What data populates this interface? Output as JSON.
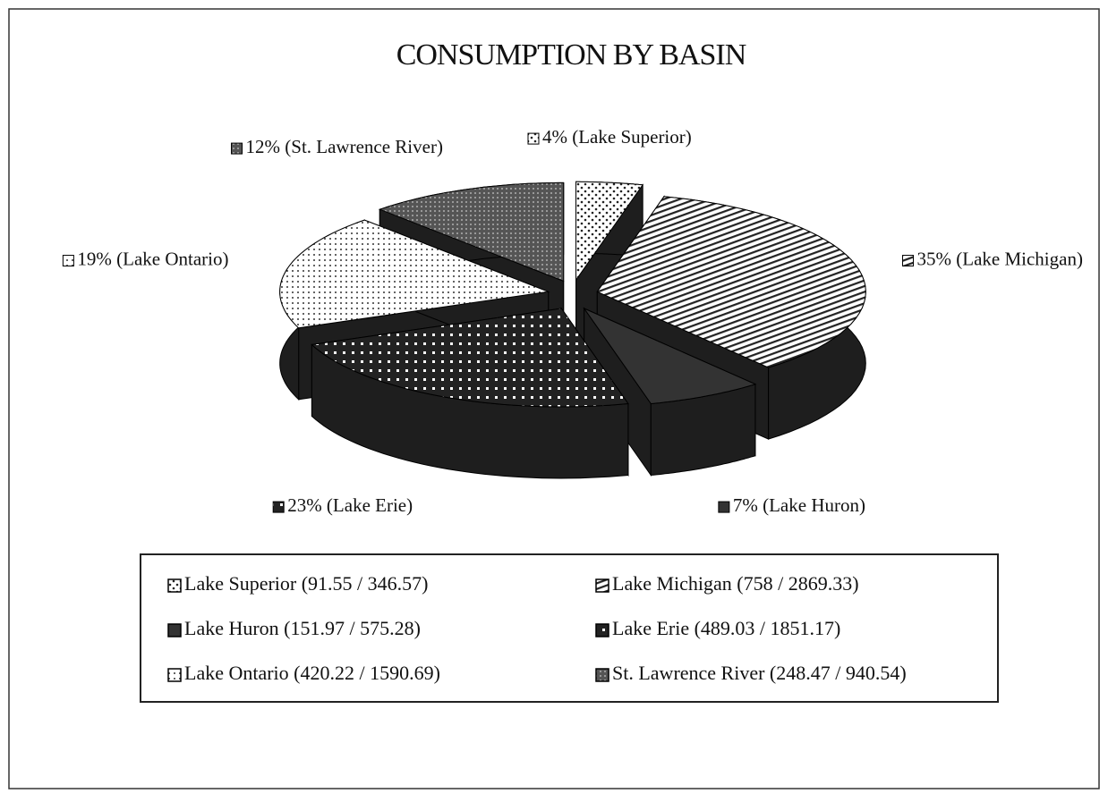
{
  "chart_data": {
    "type": "pie",
    "title": "CONSUMPTION BY BASIN",
    "categories": [
      "Lake Superior",
      "Lake Michigan",
      "Lake Huron",
      "Lake Erie",
      "Lake Ontario",
      "St. Lawrence River"
    ],
    "values": [
      4,
      35,
      7,
      23,
      19,
      12
    ],
    "value_labels": [
      "4% (Lake Superior)",
      "35% (Lake Michigan)",
      "7% (Lake Huron)",
      "23% (Lake Erie)",
      "19% (Lake Ontario)",
      "12% (St. Lawrence River)"
    ],
    "legend_labels": [
      "Lake Superior (91.55 / 346.57)",
      "Lake Michigan (758 /  2869.33)",
      "Lake Huron (151.97 / 575.28)",
      "Lake Erie (489.03 / 1851.17)",
      "Lake Ontario (420.22 / 1590.69)",
      "St. Lawrence River (248.47 / 940.54)"
    ],
    "legend": "bottom"
  }
}
